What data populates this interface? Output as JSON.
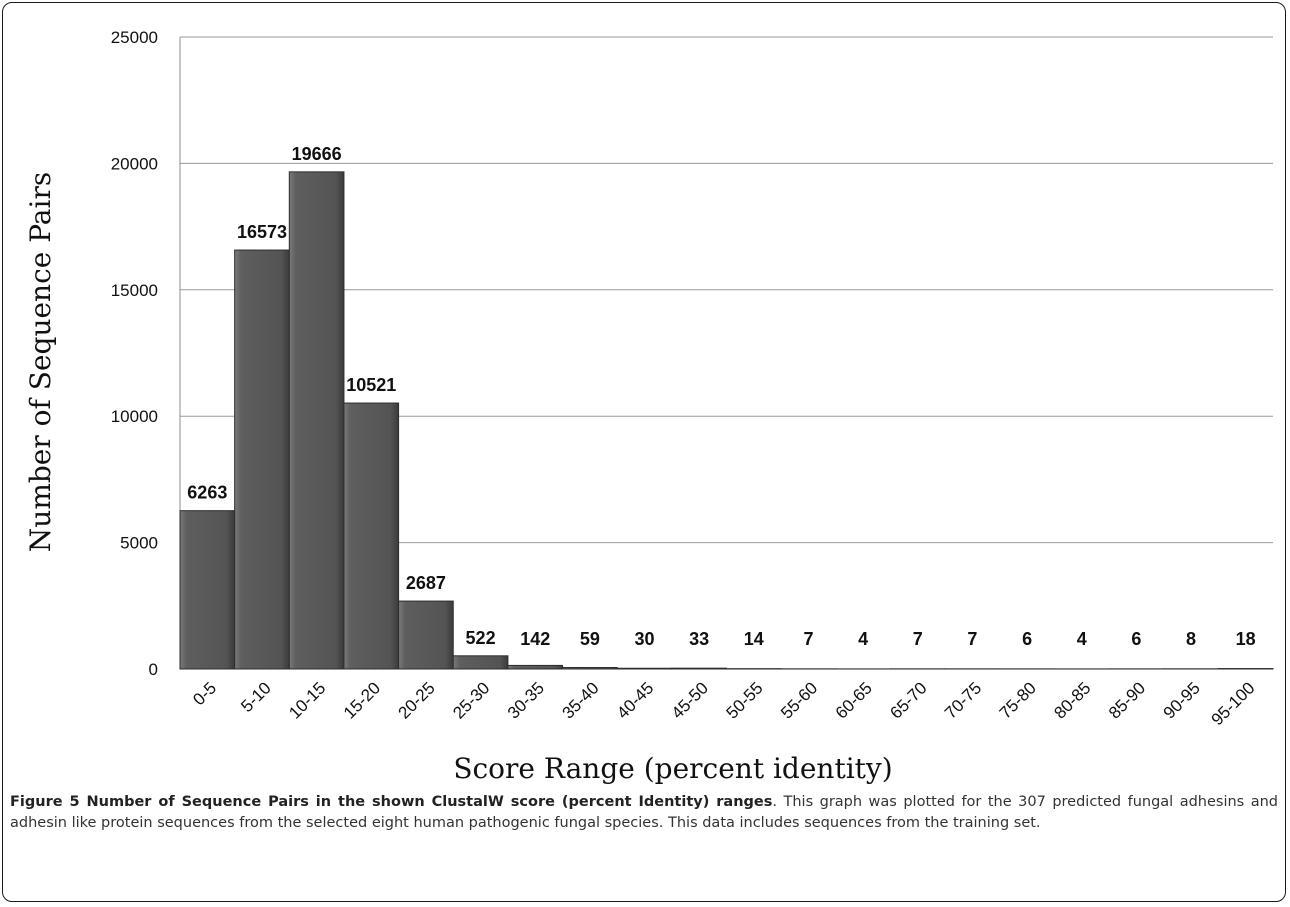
{
  "figure": {
    "caption_label": "Figure 5",
    "caption_bold": " Number of Sequence Pairs in the shown ClustalW score (percent Identity) ranges",
    "caption_text": ". This graph was plotted for the 307 predicted fungal adhesins and adhesin like protein sequences from the selected eight human pathogenic fungal species. This data includes sequences from the training set."
  },
  "chart_data": {
    "type": "bar",
    "title": "",
    "xlabel": "Score Range (percent identity)",
    "ylabel": "Number of Sequence Pairs",
    "ylim": [
      0,
      25000
    ],
    "yticks": [
      0,
      5000,
      10000,
      15000,
      20000,
      25000
    ],
    "grid": true,
    "bar_color": "#595959",
    "categories": [
      "0-5",
      "5-10",
      "10-15",
      "15-20",
      "20-25",
      "25-30",
      "30-35",
      "35-40",
      "40-45",
      "45-50",
      "50-55",
      "55-60",
      "60-65",
      "65-70",
      "70-75",
      "75-80",
      "80-85",
      "85-90",
      "90-95",
      "95-100"
    ],
    "values": [
      6263,
      16573,
      19666,
      10521,
      2687,
      522,
      142,
      59,
      30,
      33,
      14,
      7,
      4,
      7,
      7,
      6,
      4,
      6,
      8,
      18
    ]
  }
}
